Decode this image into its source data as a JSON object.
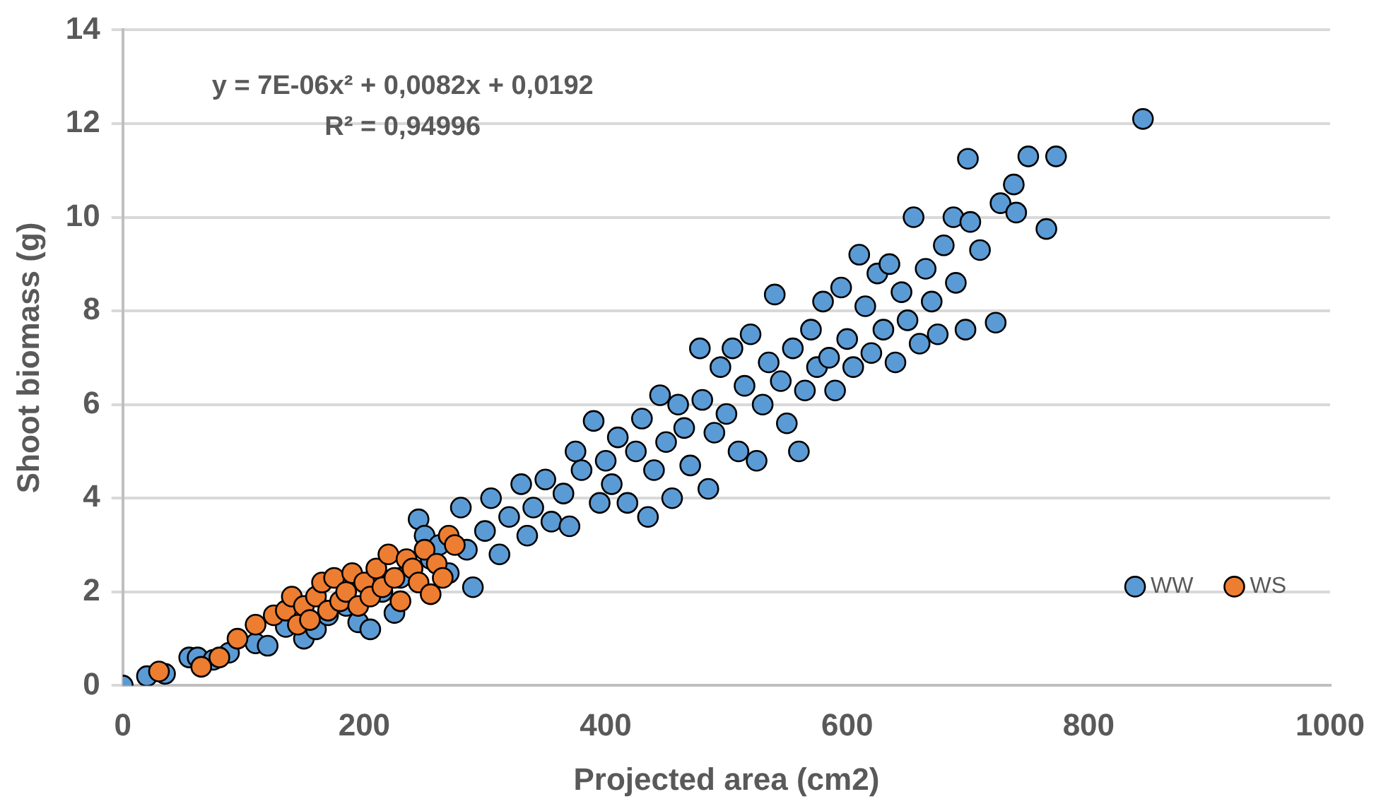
{
  "chart_data": {
    "type": "scatter",
    "xlabel": "Projected area (cm2)",
    "ylabel": "Shoot biomass (g)",
    "annotations": [
      "y = 7E-06x² + 0,0082x + 0,0192",
      "R² = 0,94996"
    ],
    "xlim": [
      0,
      1000
    ],
    "xticks": [
      0,
      200,
      400,
      600,
      800,
      1000
    ],
    "ylim": [
      0,
      14
    ],
    "yticks": [
      0,
      2,
      4,
      6,
      8,
      10,
      12,
      14
    ],
    "grid": "y",
    "legend": "bottom right",
    "marker": "circle",
    "series": [
      {
        "name": "WW",
        "color": "#5b9bd5",
        "x": [
          0,
          20,
          35,
          55,
          62,
          75,
          88,
          110,
          120,
          135,
          150,
          160,
          170,
          185,
          195,
          205,
          215,
          225,
          230,
          245,
          250,
          255,
          262,
          270,
          280,
          285,
          290,
          300,
          305,
          312,
          320,
          330,
          335,
          340,
          350,
          355,
          365,
          370,
          375,
          380,
          390,
          395,
          400,
          405,
          410,
          418,
          425,
          430,
          435,
          440,
          445,
          450,
          455,
          460,
          465,
          470,
          478,
          480,
          485,
          490,
          495,
          500,
          505,
          510,
          515,
          520,
          525,
          530,
          535,
          540,
          545,
          550,
          555,
          560,
          565,
          570,
          575,
          580,
          585,
          590,
          595,
          600,
          605,
          610,
          615,
          620,
          625,
          630,
          635,
          640,
          645,
          650,
          655,
          660,
          665,
          670,
          675,
          680,
          688,
          690,
          698,
          700,
          702,
          710,
          723,
          727,
          738,
          740,
          750,
          765,
          773,
          845
        ],
        "values": [
          0,
          0.2,
          0.25,
          0.6,
          0.6,
          0.55,
          0.7,
          0.9,
          0.85,
          1.25,
          1,
          1.2,
          1.5,
          1.7,
          1.35,
          1.2,
          2,
          1.55,
          2.3,
          3.55,
          3.2,
          2.7,
          3,
          2.4,
          3.8,
          2.9,
          2.1,
          3.3,
          4,
          2.8,
          3.6,
          4.3,
          3.2,
          3.8,
          4.4,
          3.5,
          4.1,
          3.4,
          5,
          4.6,
          5.65,
          3.9,
          4.8,
          4.3,
          5.3,
          3.9,
          5,
          5.7,
          3.6,
          4.6,
          6.2,
          5.2,
          4,
          6,
          5.5,
          4.7,
          7.2,
          6.1,
          4.2,
          5.4,
          6.8,
          5.8,
          7.2,
          5,
          6.4,
          7.5,
          4.8,
          6,
          6.9,
          8.35,
          6.5,
          5.6,
          7.2,
          5,
          6.3,
          7.6,
          6.8,
          8.2,
          7,
          6.3,
          8.5,
          7.4,
          6.8,
          9.2,
          8.1,
          7.1,
          8.8,
          7.6,
          9,
          6.9,
          8.4,
          7.8,
          10,
          7.3,
          8.9,
          8.2,
          7.5,
          9.4,
          10,
          8.6,
          7.6,
          11.25,
          9.9,
          9.3,
          7.75,
          10.3,
          10.7,
          10.1,
          11.3,
          9.75,
          11.3,
          12.1
        ]
      },
      {
        "name": "WS",
        "color": "#ed7d31",
        "x": [
          30,
          65,
          80,
          95,
          110,
          125,
          135,
          140,
          145,
          150,
          155,
          160,
          165,
          170,
          175,
          180,
          185,
          190,
          195,
          200,
          205,
          210,
          215,
          220,
          225,
          230,
          235,
          240,
          245,
          250,
          255,
          260,
          265,
          270,
          275
        ],
        "values": [
          0.3,
          0.4,
          0.6,
          1,
          1.3,
          1.5,
          1.6,
          1.9,
          1.3,
          1.7,
          1.4,
          1.9,
          2.2,
          1.6,
          2.3,
          1.8,
          2,
          2.4,
          1.7,
          2.2,
          1.9,
          2.5,
          2.1,
          2.8,
          2.3,
          1.8,
          2.7,
          2.5,
          2.2,
          2.9,
          1.95,
          2.6,
          2.3,
          3.2,
          3
        ]
      }
    ]
  }
}
